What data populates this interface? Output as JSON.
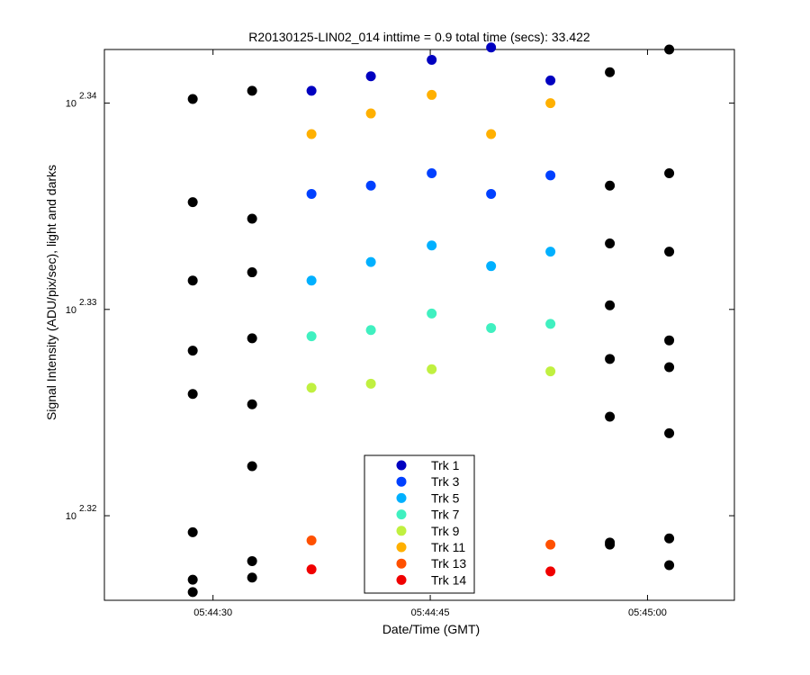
{
  "chart_data": {
    "type": "scatter",
    "title": "R20130125-LIN02_014 inttime = 0.9 total time (secs): 33.422",
    "xlabel": "Date/Time (GMT)",
    "ylabel": "Signal Intensity (ADU/pix/sec), light and darks",
    "x_scale": "time",
    "y_scale": "log10",
    "xlim": [
      "05:44:22.5",
      "05:45:06"
    ],
    "x_ticks": [
      "05:44:30",
      "05:44:45",
      "05:45:00"
    ],
    "y_ticks": [
      {
        "base": "10",
        "exponent": "2.32"
      },
      {
        "base": "10",
        "exponent": "2.33"
      },
      {
        "base": "10",
        "exponent": "2.34"
      }
    ],
    "ylim_exponent": [
      2.3159,
      2.3426
    ],
    "grid": false,
    "legend_position": "bottom-center",
    "x": [
      "05:44:28.6",
      "05:44:32.7",
      "05:44:36.8",
      "05:44:40.9",
      "05:44:45.1",
      "05:44:49.2",
      "05:44:53.3",
      "05:44:57.4",
      "05:45:01.5"
    ],
    "series": [
      {
        "name": "Trk 1",
        "color": "#0000c0",
        "y_exponent": [
          null,
          null,
          2.3406,
          2.3413,
          2.3421,
          2.3427,
          2.3411,
          null,
          null
        ]
      },
      {
        "name": "Trk 3",
        "color": "#0040ff",
        "y_exponent": [
          null,
          null,
          2.3356,
          2.336,
          2.3366,
          2.3356,
          2.3365,
          null,
          null
        ]
      },
      {
        "name": "Trk 5",
        "color": "#00b0ff",
        "y_exponent": [
          null,
          null,
          2.3314,
          2.3323,
          2.3331,
          2.3321,
          2.3328,
          null,
          null
        ]
      },
      {
        "name": "Trk 7",
        "color": "#40f0c0",
        "y_exponent": [
          null,
          null,
          2.3287,
          2.329,
          2.3298,
          2.3291,
          2.3293,
          null,
          null
        ]
      },
      {
        "name": "Trk 9",
        "color": "#c0f040",
        "y_exponent": [
          null,
          null,
          2.3262,
          2.3264,
          2.3271,
          null,
          2.327,
          null,
          null
        ]
      },
      {
        "name": "Trk 11",
        "color": "#ffb000",
        "y_exponent": [
          null,
          null,
          2.3385,
          2.3395,
          2.3404,
          2.3385,
          2.34,
          null,
          null
        ]
      },
      {
        "name": "Trk 13",
        "color": "#ff5000",
        "y_exponent": [
          null,
          null,
          2.3188,
          2.3182,
          null,
          null,
          2.3186,
          null,
          null
        ]
      },
      {
        "name": "Trk 14",
        "color": "#f00000",
        "y_exponent": [
          null,
          null,
          2.3174,
          2.3174,
          null,
          null,
          2.3173,
          null,
          null
        ]
      }
    ],
    "darks": {
      "color": "#000000",
      "points": [
        {
          "x": "05:44:28.6",
          "y_exponent": [
            2.3402,
            2.3352,
            2.3314,
            2.328,
            2.3259,
            2.3192,
            2.3169,
            2.3163
          ]
        },
        {
          "x": "05:44:32.7",
          "y_exponent": [
            2.3406,
            2.3344,
            2.3318,
            2.3286,
            2.3254,
            2.3224,
            2.3178,
            2.317
          ]
        },
        {
          "x": "05:44:57.4",
          "y_exponent": [
            2.3415,
            2.336,
            2.3332,
            2.3302,
            2.3276,
            2.3248,
            2.3187,
            2.3186
          ]
        },
        {
          "x": "05:45:01.5",
          "y_exponent": [
            2.3426,
            2.3366,
            2.3328,
            2.3285,
            2.3272,
            2.324,
            2.3189,
            2.3176
          ]
        }
      ]
    }
  }
}
